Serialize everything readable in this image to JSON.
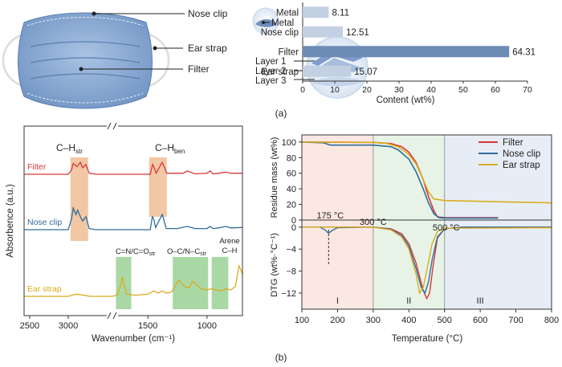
{
  "panel_a": {
    "label": "(a)",
    "mask_callouts": [
      "Nose clip",
      "Ear strap",
      "Filter"
    ],
    "metal_callout": "Metal",
    "layer_callouts": [
      "Layer 1",
      "Layer 2",
      "Layer 3"
    ]
  },
  "panel_b": {
    "label": "(b)",
    "ftir_band_labels": {
      "ch_str": "C–H",
      "ch_str_sub": "str",
      "ch_ben": "C–H",
      "ch_ben_sub": "ben",
      "cn_co": "C=N/C=O",
      "cn_co_sub": "str",
      "oc_nc": "O–C/N–C",
      "oc_nc_sub": "str",
      "arene_1": "Arene",
      "arene_2": "C–H"
    },
    "tga_annotations": {
      "t175": "175 °C",
      "t300": "300 °C",
      "t500": "500 °C",
      "regions": [
        "I",
        "II",
        "III"
      ]
    }
  },
  "colors": {
    "filter": "#d9373b",
    "nose_clip": "#2f6d9e",
    "ear_strap": "#d9ac1f",
    "bar": "#6d8cb5",
    "bar_light": "#c2d0e2",
    "band_orange": "#f2c7a3",
    "band_green": "#a9d8a5",
    "region_red": "#fbe8e3",
    "region_green": "#e7f3e6",
    "region_blue": "#e7edf6"
  },
  "chart_data": [
    {
      "type": "bar",
      "orientation": "horizontal",
      "categories": [
        "Metal",
        "Nose clip",
        "Filter",
        "Ear strap"
      ],
      "values": [
        8.11,
        12.51,
        64.31,
        15.07
      ],
      "xlabel": "Content (wt%)",
      "xticks": [
        "0",
        "10",
        "20",
        "30",
        "40",
        "50",
        "60",
        "70"
      ],
      "xlim": [
        0,
        70
      ]
    },
    {
      "type": "line",
      "xlabel": "Wavenumber (cm⁻¹)",
      "ylabel": "Absorbence (a.u.)",
      "xticks": [
        "3000",
        "2500",
        "1500",
        "1000"
      ],
      "xlim": [
        3400,
        700
      ],
      "x_axis_break": [
        2600,
        1800
      ],
      "series": [
        {
          "name": "Filter",
          "points": [
            [
              3400,
              1.0
            ],
            [
              3000,
              1.0
            ],
            [
              2970,
              1.2
            ],
            [
              2955,
              1.5
            ],
            [
              2920,
              1.35
            ],
            [
              2890,
              1.55
            ],
            [
              2870,
              1.3
            ],
            [
              2840,
              1.45
            ],
            [
              2810,
              1.05
            ],
            [
              2750,
              1.0
            ],
            [
              2600,
              1.0
            ],
            [
              1800,
              1.0
            ],
            [
              1480,
              1.0
            ],
            [
              1460,
              1.45
            ],
            [
              1450,
              1.35
            ],
            [
              1430,
              1.05
            ],
            [
              1380,
              1.55
            ],
            [
              1370,
              1.45
            ],
            [
              1340,
              1.05
            ],
            [
              1200,
              1.05
            ],
            [
              1168,
              1.15
            ],
            [
              1100,
              1.02
            ],
            [
              1000,
              1.05
            ],
            [
              973,
              1.15
            ],
            [
              950,
              1.02
            ],
            [
              900,
              1.05
            ],
            [
              840,
              1.1
            ],
            [
              800,
              1.05
            ],
            [
              700,
              1.05
            ]
          ]
        },
        {
          "name": "Nose clip",
          "points": [
            [
              3400,
              0.0
            ],
            [
              3000,
              0.0
            ],
            [
              2970,
              0.5
            ],
            [
              2955,
              1.0
            ],
            [
              2930,
              0.7
            ],
            [
              2915,
              0.9
            ],
            [
              2890,
              0.6
            ],
            [
              2870,
              0.4
            ],
            [
              2840,
              0.6
            ],
            [
              2810,
              0.05
            ],
            [
              2750,
              0.0
            ],
            [
              2600,
              0.0
            ],
            [
              1800,
              0.0
            ],
            [
              1480,
              0.0
            ],
            [
              1462,
              0.6
            ],
            [
              1450,
              0.5
            ],
            [
              1435,
              0.1
            ],
            [
              1378,
              0.7
            ],
            [
              1370,
              0.55
            ],
            [
              1345,
              0.05
            ],
            [
              1250,
              0.05
            ],
            [
              1168,
              0.15
            ],
            [
              1100,
              0.05
            ],
            [
              1000,
              0.05
            ],
            [
              973,
              0.15
            ],
            [
              950,
              0.05
            ],
            [
              900,
              0.08
            ],
            [
              840,
              0.15
            ],
            [
              800,
              0.08
            ],
            [
              700,
              0.1
            ]
          ]
        },
        {
          "name": "Ear strap",
          "points": [
            [
              3400,
              -1.6
            ],
            [
              3000,
              -1.6
            ],
            [
              2970,
              -1.55
            ],
            [
              2920,
              -1.5
            ],
            [
              2860,
              -1.55
            ],
            [
              2800,
              -1.6
            ],
            [
              2600,
              -1.6
            ],
            [
              1800,
              -1.6
            ],
            [
              1760,
              -1.55
            ],
            [
              1730,
              -1.1
            ],
            [
              1715,
              -0.7
            ],
            [
              1700,
              -1.1
            ],
            [
              1680,
              -1.5
            ],
            [
              1600,
              -1.55
            ],
            [
              1500,
              -1.5
            ],
            [
              1450,
              -1.35
            ],
            [
              1410,
              -1.45
            ],
            [
              1380,
              -1.35
            ],
            [
              1340,
              -1.45
            ],
            [
              1300,
              -1.4
            ],
            [
              1250,
              -0.95
            ],
            [
              1235,
              -0.85
            ],
            [
              1220,
              -1.0
            ],
            [
              1175,
              -1.2
            ],
            [
              1150,
              -1.2
            ],
            [
              1120,
              -0.9
            ],
            [
              1100,
              -1.0
            ],
            [
              1050,
              -1.25
            ],
            [
              1000,
              -1.3
            ],
            [
              960,
              -1.25
            ],
            [
              930,
              -1.3
            ],
            [
              880,
              -1.35
            ],
            [
              840,
              -1.25
            ],
            [
              800,
              -1.3
            ],
            [
              760,
              -1.15
            ],
            [
              730,
              -0.2
            ],
            [
              715,
              -0.35
            ],
            [
              700,
              -0.6
            ]
          ]
        }
      ],
      "bands": [
        {
          "label": "ch_str",
          "from": 2980,
          "to": 2820,
          "color": "orange"
        },
        {
          "label": "ch_ben",
          "from": 1490,
          "to": 1340,
          "color": "orange"
        },
        {
          "label": "cn_co",
          "from": 1770,
          "to": 1640,
          "color": "green"
        },
        {
          "label": "oc_nc",
          "from": 1290,
          "to": 990,
          "color": "green"
        },
        {
          "label": "arene",
          "from": 960,
          "to": 820,
          "color": "green"
        }
      ]
    },
    {
      "type": "line",
      "title": "",
      "xlabel": "Temperature (°C)",
      "ylabel": "Residue mass (wt%)",
      "xticks": [
        "100",
        "200",
        "300",
        "400",
        "500",
        "600",
        "700",
        "800"
      ],
      "yticks": [
        "0",
        "20",
        "40",
        "60",
        "80",
        "100"
      ],
      "xlim": [
        100,
        800
      ],
      "ylim": [
        0,
        105
      ],
      "legend": "top-right",
      "series": [
        {
          "name": "Filter",
          "points": [
            [
              100,
              100
            ],
            [
              300,
              99.5
            ],
            [
              350,
              98
            ],
            [
              380,
              94
            ],
            [
              400,
              87
            ],
            [
              420,
              74
            ],
            [
              440,
              52
            ],
            [
              455,
              30
            ],
            [
              470,
              12
            ],
            [
              480,
              4
            ],
            [
              500,
              3
            ],
            [
              650,
              3
            ]
          ]
        },
        {
          "name": "Nose clip",
          "points": [
            [
              100,
              100
            ],
            [
              160,
              99
            ],
            [
              180,
              96
            ],
            [
              300,
              96
            ],
            [
              350,
              94
            ],
            [
              370,
              90
            ],
            [
              400,
              78
            ],
            [
              420,
              62
            ],
            [
              440,
              40
            ],
            [
              455,
              22
            ],
            [
              470,
              8
            ],
            [
              485,
              3
            ],
            [
              500,
              2.5
            ],
            [
              650,
              2.5
            ]
          ]
        },
        {
          "name": "Ear strap",
          "points": [
            [
              100,
              100
            ],
            [
              300,
              99.5
            ],
            [
              340,
              98
            ],
            [
              370,
              94
            ],
            [
              400,
              84
            ],
            [
              420,
              72
            ],
            [
              440,
              52
            ],
            [
              455,
              36
            ],
            [
              470,
              27
            ],
            [
              500,
              25
            ],
            [
              600,
              24
            ],
            [
              700,
              23
            ],
            [
              800,
              22
            ]
          ]
        }
      ]
    },
    {
      "type": "line",
      "xlabel": "Temperature (°C)",
      "ylabel": "DTG (wt%·°C⁻¹)",
      "xticks": [
        "100",
        "200",
        "300",
        "400",
        "500",
        "600",
        "700",
        "800"
      ],
      "yticks": [
        "0",
        "−4",
        "−8",
        "−12"
      ],
      "xlim": [
        100,
        800
      ],
      "ylim": [
        -14.5,
        1
      ],
      "series": [
        {
          "name": "Filter",
          "points": [
            [
              100,
              0
            ],
            [
              300,
              0
            ],
            [
              350,
              -0.3
            ],
            [
              380,
              -1.2
            ],
            [
              400,
              -3
            ],
            [
              420,
              -6.5
            ],
            [
              440,
              -11.5
            ],
            [
              450,
              -13
            ],
            [
              458,
              -12
            ],
            [
              468,
              -7
            ],
            [
              480,
              -2
            ],
            [
              500,
              -0.3
            ],
            [
              550,
              0
            ],
            [
              800,
              0
            ]
          ]
        },
        {
          "name": "Nose clip",
          "points": [
            [
              100,
              0
            ],
            [
              150,
              0
            ],
            [
              165,
              -0.5
            ],
            [
              175,
              -1.1
            ],
            [
              185,
              -0.6
            ],
            [
              200,
              -0.1
            ],
            [
              300,
              0
            ],
            [
              350,
              -0.4
            ],
            [
              380,
              -1.5
            ],
            [
              400,
              -3.5
            ],
            [
              420,
              -7.5
            ],
            [
              435,
              -11
            ],
            [
              445,
              -12
            ],
            [
              455,
              -10
            ],
            [
              465,
              -6
            ],
            [
              480,
              -1.8
            ],
            [
              500,
              -0.3
            ],
            [
              550,
              0
            ],
            [
              800,
              0
            ]
          ]
        },
        {
          "name": "Ear strap",
          "points": [
            [
              100,
              0
            ],
            [
              300,
              0
            ],
            [
              350,
              -0.5
            ],
            [
              380,
              -1.8
            ],
            [
              400,
              -4
            ],
            [
              420,
              -8.5
            ],
            [
              430,
              -12
            ],
            [
              440,
              -11
            ],
            [
              450,
              -8
            ],
            [
              465,
              -3
            ],
            [
              480,
              -0.8
            ],
            [
              500,
              -0.2
            ],
            [
              800,
              -0.1
            ]
          ]
        }
      ],
      "regions": [
        [
          100,
          300
        ],
        [
          300,
          500
        ],
        [
          500,
          800
        ]
      ]
    }
  ]
}
